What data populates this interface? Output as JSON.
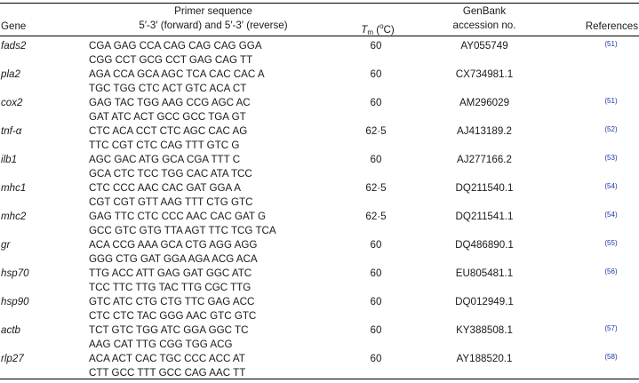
{
  "header": {
    "gene": "Gene",
    "primer_line1": "Primer sequence",
    "primer_line2": "5′-3′ (forward) and 5′-3′ (reverse)",
    "tm_symbol": "T",
    "tm_sub": "m",
    "tm_unit_open": " (",
    "tm_degree": "o",
    "tm_unit_close": "C)",
    "genbank_line1": "GenBank",
    "genbank_line2": "accession no.",
    "references": "References"
  },
  "rows": [
    {
      "gene": "fads2",
      "forward": "CGA GAG CCA CAG CAG CAG GGA",
      "reverse": "CGG CCT GCG CCT GAG CAG TT",
      "tm": "60",
      "accession": "AY055749",
      "ref": "(51)"
    },
    {
      "gene": "pla2",
      "forward": "AGA CCA GCA AGC TCA CAC CAC A",
      "reverse": "TGC TGG CTC ACT GTC ACA CT",
      "tm": "60",
      "accession": "CX734981.1",
      "ref": ""
    },
    {
      "gene": "cox2",
      "forward": "GAG TAC TGG AAG CCG AGC AC",
      "reverse": "GAT ATC ACT GCC GCC TGA GT",
      "tm": "60",
      "accession": "AM296029",
      "ref": "(51)"
    },
    {
      "gene": "tnf-α",
      "forward": "CTC ACA CCT CTC AGC CAC AG",
      "reverse": "TTC CGT CTC CAG TTT GTC G",
      "tm": "62·5",
      "accession": "AJ413189.2",
      "ref": "(52)"
    },
    {
      "gene": "ilb1",
      "forward": "AGC GAC ATG GCA CGA TTT C",
      "reverse": "GCA CTC TCC TGG CAC ATA TCC",
      "tm": "60",
      "accession": "AJ277166.2",
      "ref": "(53)"
    },
    {
      "gene": "mhc1",
      "forward": "CTC CCC AAC CAC GAT GGA A",
      "reverse": "CGT CGT GTT AAG TTT CTG GTC",
      "tm": "62·5",
      "accession": "DQ211540.1",
      "ref": "(54)"
    },
    {
      "gene": "mhc2",
      "forward": "GAG TTC CTC CCC AAC CAC GAT G",
      "reverse": "GCC GTC GTG TTA AGT TTC TCG TCA",
      "tm": "62·5",
      "accession": "DQ211541.1",
      "ref": "(54)"
    },
    {
      "gene": "gr",
      "forward": "ACA CCG AAA GCA CTG AGG AGG",
      "reverse": "GGG CTG GAT GGA AGA ACG ACA",
      "tm": "60",
      "accession": "DQ486890.1",
      "ref": "(55)"
    },
    {
      "gene": "hsp70",
      "forward": "TTG ACC ATT GAG GAT GGC ATC",
      "reverse": "TCC TTC TTG TAC TTG CGC TTG",
      "tm": "60",
      "accession": "EU805481.1",
      "ref": "(56)"
    },
    {
      "gene": "hsp90",
      "forward": "GTC ATC CTG CTG TTC GAG ACC",
      "reverse": "CTC CTC TAC GGG AAC GTC GTC",
      "tm": "60",
      "accession": "DQ012949.1",
      "ref": ""
    },
    {
      "gene": "actb",
      "forward": "TCT GTC TGG ATC GGA GGC TC",
      "reverse": "AAG CAT TTG CGG TGG ACG",
      "tm": "60",
      "accession": "KY388508.1",
      "ref": "(57)"
    },
    {
      "gene": "rlp27",
      "forward": "ACA ACT CAC TGC CCC ACC AT",
      "reverse": "CTT GCC TTT GCC CAG AAC TT",
      "tm": "60",
      "accession": "AY188520.1",
      "ref": "(58)"
    }
  ]
}
